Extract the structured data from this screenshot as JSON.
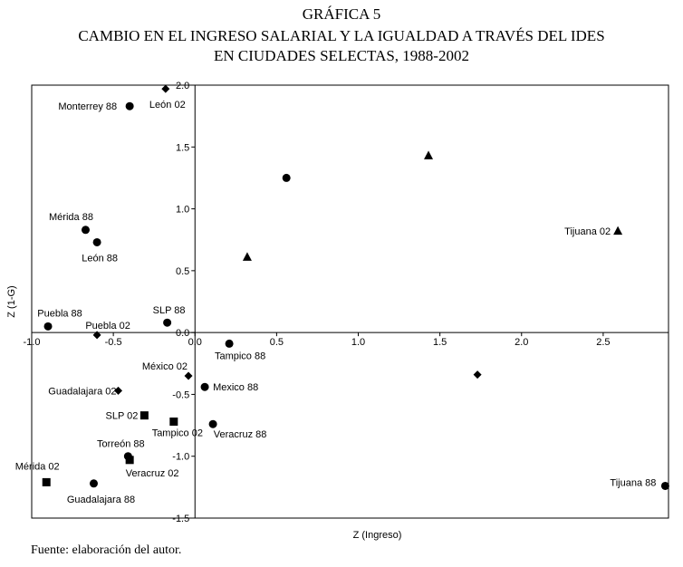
{
  "chart_data": {
    "type": "scatter",
    "title_lines": [
      "GRÁFICA 5",
      "CAMBIO EN EL INGRESO SALARIAL Y LA IGUALDAD A TRAVÉS DEL IDES",
      "EN CIUDADES SELECTAS, 1988-2002"
    ],
    "xlabel": "Z (Ingreso)",
    "ylabel": "Z (1-G)",
    "xlim": [
      -1.0,
      2.9
    ],
    "ylim": [
      -1.5,
      2.0
    ],
    "x_ticks": [
      "-1.0",
      "-0.5",
      "0.0",
      "0.5",
      "1.0",
      "1.5",
      "2.0",
      "2.5"
    ],
    "x_tick_values": [
      -1.0,
      -0.5,
      0.0,
      0.5,
      1.0,
      1.5,
      2.0,
      2.5
    ],
    "y_ticks": [
      "2.0",
      "1.5",
      "1.0",
      "0.5",
      "0.0",
      "-0.5",
      "-1.0",
      "-1.5"
    ],
    "y_tick_values": [
      2.0,
      1.5,
      1.0,
      0.5,
      0.0,
      -0.5,
      -1.0,
      -1.5
    ],
    "points": [
      {
        "x": -0.4,
        "y": 1.83,
        "marker": "circle",
        "label": "Monterrey 88",
        "anchor": "end",
        "dx": -14,
        "dy": 4
      },
      {
        "x": -0.18,
        "y": 1.97,
        "marker": "diamond",
        "label": "León 02",
        "anchor": "middle",
        "dx": 2,
        "dy": 21
      },
      {
        "x": -0.67,
        "y": 0.83,
        "marker": "circle",
        "label": "Mérida 88",
        "anchor": "middle",
        "dx": -16,
        "dy": -11
      },
      {
        "x": -0.6,
        "y": 0.73,
        "marker": "circle",
        "label": "León 88",
        "anchor": "middle",
        "dx": 3,
        "dy": 21
      },
      {
        "x": -0.9,
        "y": 0.05,
        "marker": "circle",
        "label": "Puebla 88",
        "anchor": "middle",
        "dx": 13,
        "dy": -11
      },
      {
        "x": -0.6,
        "y": -0.02,
        "marker": "diamond",
        "label": "Puebla 02",
        "anchor": "middle",
        "dx": 12,
        "dy": -7
      },
      {
        "x": -0.17,
        "y": 0.08,
        "marker": "circle",
        "label": "SLP 88",
        "anchor": "middle",
        "dx": 2,
        "dy": -10
      },
      {
        "x": 0.21,
        "y": -0.09,
        "marker": "circle",
        "label": "Tampico 88",
        "anchor": "middle",
        "dx": 12,
        "dy": 17
      },
      {
        "x": 0.56,
        "y": 1.25,
        "marker": "circle",
        "label": "",
        "anchor": "middle",
        "dx": 0,
        "dy": 0
      },
      {
        "x": 0.32,
        "y": 0.61,
        "marker": "triangle",
        "label": "",
        "anchor": "middle",
        "dx": 0,
        "dy": 0
      },
      {
        "x": 1.43,
        "y": 1.43,
        "marker": "triangle",
        "label": "",
        "anchor": "middle",
        "dx": 0,
        "dy": 0
      },
      {
        "x": 2.59,
        "y": 0.82,
        "marker": "triangle",
        "label": "Tijuana 02",
        "anchor": "end",
        "dx": -8,
        "dy": 4
      },
      {
        "x": 1.73,
        "y": -0.34,
        "marker": "diamond",
        "label": "",
        "anchor": "middle",
        "dx": 0,
        "dy": 0
      },
      {
        "x": -0.04,
        "y": -0.35,
        "marker": "diamond",
        "label": "México 02",
        "anchor": "end",
        "dx": -1,
        "dy": -7
      },
      {
        "x": -0.47,
        "y": -0.47,
        "marker": "diamond",
        "label": "Guadalajara 02",
        "anchor": "end",
        "dx": -2,
        "dy": 4
      },
      {
        "x": 0.06,
        "y": -0.44,
        "marker": "circle",
        "label": "Mexico 88",
        "anchor": "start",
        "dx": 9,
        "dy": 4
      },
      {
        "x": -0.31,
        "y": -0.67,
        "marker": "square",
        "label": "SLP 02",
        "anchor": "end",
        "dx": -7,
        "dy": 4
      },
      {
        "x": -0.13,
        "y": -0.72,
        "marker": "square",
        "label": "Tampico 02",
        "anchor": "middle",
        "dx": 4,
        "dy": 16
      },
      {
        "x": 0.11,
        "y": -0.74,
        "marker": "circle",
        "label": "Veracruz 88",
        "anchor": "middle",
        "dx": 30,
        "dy": 15
      },
      {
        "x": -0.41,
        "y": -1.0,
        "marker": "circle",
        "label": "Torreón 88",
        "anchor": "middle",
        "dx": -8,
        "dy": -10
      },
      {
        "x": -0.4,
        "y": -1.03,
        "marker": "square",
        "label": "Veracruz 02",
        "anchor": "middle",
        "dx": 25,
        "dy": 18
      },
      {
        "x": -0.91,
        "y": -1.21,
        "marker": "square",
        "label": "Mérida 02",
        "anchor": "middle",
        "dx": -10,
        "dy": -14
      },
      {
        "x": -0.62,
        "y": -1.22,
        "marker": "circle",
        "label": "Guadalajara 88",
        "anchor": "middle",
        "dx": 8,
        "dy": 21
      },
      {
        "x": 2.88,
        "y": -1.24,
        "marker": "circle",
        "label": "Tijuana 88",
        "anchor": "end",
        "dx": -10,
        "dy": 0
      }
    ]
  },
  "source_note": "Fuente: elaboración del autor."
}
